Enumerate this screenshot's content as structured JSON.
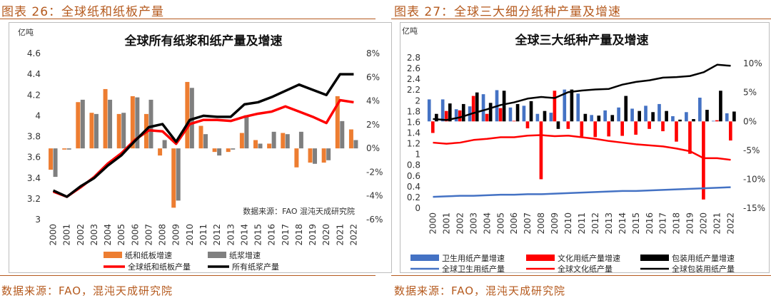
{
  "left_figure": {
    "caption": "图表 26：全球纸和纸板产量",
    "source": "数据来源：FAO，混沌天成研究院"
  },
  "right_figure": {
    "caption": "图表 27：全球三大细分纸种产量及增速",
    "source": "数据来源：FAO，混沌天成研究院"
  },
  "chart_data": [
    {
      "type": "bar",
      "title": "全球所有纸浆和纸产量及增速",
      "y_unit_label": "亿吨",
      "inner_source": "数据来源：FAO  混沌天成研究院",
      "categories": [
        "2000",
        "2001",
        "2002",
        "2003",
        "2004",
        "2005",
        "2006",
        "2007",
        "2008",
        "2009",
        "2010",
        "2011",
        "2012",
        "2013",
        "2014",
        "2015",
        "2016",
        "2017",
        "2018",
        "2019",
        "2020",
        "2021",
        "2022"
      ],
      "left_axis": {
        "ylim": [
          3,
          4.6
        ],
        "ticks": [
          "3",
          "3.2",
          "3.4",
          "3.6",
          "3.8",
          "4",
          "4.2",
          "4.4",
          "4.6"
        ]
      },
      "right_axis": {
        "ylim": [
          -6,
          8
        ],
        "ticks": [
          "-6%",
          "-4%",
          "-2%",
          "0%",
          "2%",
          "4%",
          "6%",
          "8%"
        ]
      },
      "series": [
        {
          "name": "纸和纸板增速",
          "kind": "bar",
          "axis": "right",
          "color": "#ed7d31",
          "values": [
            -1.8,
            -0.1,
            3.9,
            3.0,
            5.0,
            2.9,
            4.4,
            2.9,
            -0.6,
            -5.0,
            5.6,
            1.9,
            -0.3,
            -0.3,
            1.3,
            0.7,
            0.4,
            1.3,
            -1.6,
            -1.2,
            -1.2,
            4.4,
            1.6
          ]
        },
        {
          "name": "纸浆增速",
          "kind": "bar",
          "axis": "right",
          "color": "#7f7f7f",
          "values": [
            -2.4,
            -0.1,
            4.1,
            2.9,
            4.1,
            3.0,
            4.3,
            4.1,
            0.7,
            -4.4,
            5.1,
            1.2,
            -0.6,
            -0.1,
            2.8,
            0.4,
            1.4,
            1.2,
            1.4,
            -1.3,
            -1.0,
            2.3,
            0.7
          ]
        },
        {
          "name": "全球纸和纸板产量",
          "kind": "line",
          "axis": "left",
          "color": "#ff0000",
          "values": [
            3.27,
            3.22,
            3.31,
            3.41,
            3.54,
            3.64,
            3.77,
            3.86,
            3.85,
            3.73,
            3.92,
            3.96,
            3.96,
            3.95,
            3.99,
            4.02,
            4.04,
            4.09,
            4.04,
            3.99,
            3.93,
            4.15,
            4.13
          ]
        },
        {
          "name": "所有纸浆产量",
          "kind": "line",
          "axis": "left",
          "color": "#000000",
          "values": [
            3.28,
            3.22,
            3.32,
            3.4,
            3.52,
            3.62,
            3.76,
            3.89,
            3.92,
            3.75,
            3.96,
            4.0,
            3.99,
            3.99,
            4.11,
            4.13,
            4.18,
            4.24,
            4.3,
            4.25,
            4.2,
            4.4,
            4.4
          ]
        }
      ]
    },
    {
      "type": "bar",
      "title": "全球三大纸种产量及增速",
      "y_unit_label": "亿吨",
      "categories": [
        "2000",
        "2001",
        "2002",
        "2003",
        "2004",
        "2005",
        "2006",
        "2007",
        "2008",
        "2009",
        "2010",
        "2011",
        "2012",
        "2013",
        "2014",
        "2015",
        "2016",
        "2017",
        "2018",
        "2019",
        "2020",
        "2021",
        "2022"
      ],
      "left_axis": {
        "ylim": [
          0,
          2.8
        ],
        "ticks": [
          "0",
          "0.2",
          "0.4",
          "0.6",
          "0.8",
          "1",
          "1.2",
          "1.4",
          "1.6",
          "1.8",
          "2",
          "2.2",
          "2.4",
          "2.6",
          "2.8"
        ]
      },
      "right_axis": {
        "ylim": [
          -15,
          11
        ],
        "ticks": [
          "-15%",
          "-10%",
          "-5%",
          "0%",
          "5%",
          "10%"
        ]
      },
      "series": [
        {
          "name": "卫生用纸产量增速",
          "kind": "bar",
          "axis": "right",
          "color": "#4472c4",
          "values": [
            3.8,
            3.8,
            2.1,
            2.6,
            4.7,
            5.4,
            2.4,
            2.7,
            1.3,
            1.5,
            5.5,
            4.8,
            1.1,
            1.9,
            2.4,
            2.2,
            2.7,
            3.0,
            0.9,
            1.6,
            4.1,
            0.1,
            1.4
          ]
        },
        {
          "name": "文化用纸产量增速",
          "kind": "bar",
          "axis": "right",
          "color": "#ff0000",
          "values": [
            -2.0,
            1.8,
            1.9,
            4.4,
            1.3,
            2.3,
            0.1,
            -1.2,
            -10.0,
            5.3,
            -1.3,
            -2.6,
            -2.7,
            -2.6,
            -2.5,
            -2.3,
            -1.3,
            -1.7,
            -3.5,
            -5.6,
            -13.5,
            0.2,
            -3.3
          ]
        },
        {
          "name": "包装用纸产量增速",
          "kind": "bar",
          "axis": "right",
          "color": "#000000",
          "values": [
            1.3,
            3.1,
            3.0,
            5.0,
            3.2,
            5.3,
            3.0,
            3.5,
            1.8,
            -1.3,
            5.5,
            1.3,
            1.0,
            1.1,
            4.4,
            1.8,
            1.6,
            1.8,
            0.3,
            0.4,
            2.0,
            5.3,
            1.7
          ]
        },
        {
          "name": "全球卫生用纸产量",
          "kind": "line",
          "axis": "left",
          "color": "#4472c4",
          "values": [
            0.21,
            0.22,
            0.23,
            0.23,
            0.24,
            0.25,
            0.25,
            0.26,
            0.26,
            0.27,
            0.28,
            0.29,
            0.3,
            0.31,
            0.32,
            0.32,
            0.33,
            0.34,
            0.35,
            0.36,
            0.37,
            0.38,
            0.39
          ]
        },
        {
          "name": "全球文化纸产量",
          "kind": "line",
          "axis": "left",
          "color": "#ff0000",
          "values": [
            1.22,
            1.2,
            1.22,
            1.27,
            1.29,
            1.32,
            1.32,
            1.35,
            1.36,
            1.34,
            1.35,
            1.32,
            1.29,
            1.25,
            1.22,
            1.19,
            1.17,
            1.15,
            1.11,
            1.06,
            0.93,
            0.93,
            0.9
          ]
        },
        {
          "name": "全球包装用纸产量",
          "kind": "line",
          "axis": "left",
          "color": "#000000",
          "values": [
            1.66,
            1.64,
            1.69,
            1.77,
            1.84,
            1.92,
            1.97,
            2.04,
            2.07,
            2.05,
            2.16,
            2.19,
            2.21,
            2.22,
            2.3,
            2.35,
            2.38,
            2.43,
            2.44,
            2.46,
            2.53,
            2.67,
            2.65
          ]
        }
      ]
    }
  ]
}
